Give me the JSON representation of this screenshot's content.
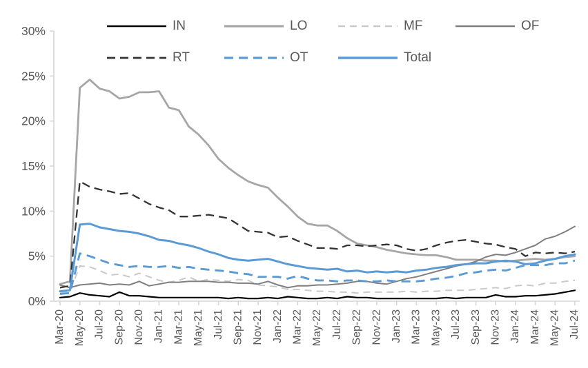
{
  "chart_data": {
    "type": "line",
    "title": "",
    "xlabel": "",
    "ylabel": "",
    "y_axis": {
      "min": 0,
      "max": 30,
      "step": 5,
      "tick_labels": [
        "0%",
        "5%",
        "10%",
        "15%",
        "20%",
        "25%",
        "30%"
      ],
      "label_color": "#595959",
      "axis_color": "#d6d6d6"
    },
    "grid": false,
    "legend_position": "top",
    "legend_rows": [
      [
        "IN",
        "LO",
        "MF",
        "OF"
      ],
      [
        "RT",
        "OT",
        "Total"
      ]
    ],
    "x_tick_every": 2,
    "x_categories": [
      "Mar-20",
      "Apr-20",
      "May-20",
      "Jun-20",
      "Jul-20",
      "Aug-20",
      "Sep-20",
      "Oct-20",
      "Nov-20",
      "Dec-20",
      "Jan-21",
      "Feb-21",
      "Mar-21",
      "Apr-21",
      "May-21",
      "Jun-21",
      "Jul-21",
      "Aug-21",
      "Sep-21",
      "Oct-21",
      "Nov-21",
      "Dec-21",
      "Jan-22",
      "Feb-22",
      "Mar-22",
      "Apr-22",
      "May-22",
      "Jun-22",
      "Jul-22",
      "Aug-22",
      "Sep-22",
      "Oct-22",
      "Nov-22",
      "Dec-22",
      "Jan-23",
      "Feb-23",
      "Mar-23",
      "Apr-23",
      "May-23",
      "Jun-23",
      "Jul-23",
      "Aug-23",
      "Sep-23",
      "Oct-23",
      "Nov-23",
      "Dec-23",
      "Jan-24",
      "Feb-24",
      "Mar-24",
      "Apr-24",
      "May-24",
      "Jun-24",
      "Jul-24"
    ],
    "series": [
      {
        "name": "IN",
        "color": "#000000",
        "style": "solid",
        "width": 2.2,
        "dash": "",
        "values": [
          0.4,
          0.5,
          0.9,
          0.7,
          0.6,
          0.5,
          1.0,
          0.6,
          0.6,
          0.5,
          0.4,
          0.4,
          0.4,
          0.4,
          0.4,
          0.4,
          0.4,
          0.3,
          0.4,
          0.3,
          0.3,
          0.4,
          0.3,
          0.5,
          0.4,
          0.3,
          0.3,
          0.4,
          0.3,
          0.5,
          0.4,
          0.4,
          0.3,
          0.3,
          0.3,
          0.3,
          0.3,
          0.3,
          0.3,
          0.4,
          0.3,
          0.4,
          0.4,
          0.4,
          0.7,
          0.5,
          0.5,
          0.6,
          0.6,
          0.7,
          0.8,
          1.0,
          1.2
        ]
      },
      {
        "name": "LO",
        "color": "#a6a6a6",
        "style": "solid",
        "width": 2.8,
        "dash": "",
        "values": [
          1.9,
          2.2,
          23.7,
          24.6,
          23.6,
          23.3,
          22.5,
          22.7,
          23.2,
          23.2,
          23.3,
          21.5,
          21.2,
          19.4,
          18.5,
          17.3,
          15.8,
          14.8,
          14.0,
          13.3,
          12.9,
          12.6,
          11.5,
          10.5,
          9.4,
          8.6,
          8.4,
          8.4,
          7.8,
          7.0,
          6.4,
          6.2,
          6.0,
          5.7,
          5.5,
          5.3,
          5.2,
          5.1,
          5.1,
          4.9,
          4.6,
          4.6,
          4.6,
          4.5,
          4.5,
          4.4,
          4.5,
          4.6,
          4.7,
          4.6,
          4.7,
          4.9,
          5.0
        ]
      },
      {
        "name": "MF",
        "color": "#c9c9c9",
        "style": "dashed",
        "width": 2.0,
        "dash": "10 7",
        "values": [
          1.0,
          1.1,
          3.9,
          3.8,
          3.4,
          2.9,
          3.0,
          2.7,
          3.1,
          2.7,
          2.3,
          2.1,
          2.3,
          2.7,
          2.2,
          2.4,
          2.3,
          2.2,
          2.4,
          2.3,
          1.8,
          1.7,
          1.6,
          1.3,
          1.3,
          1.2,
          1.1,
          1.1,
          1.0,
          1.0,
          0.9,
          1.0,
          1.0,
          1.0,
          1.0,
          1.1,
          1.0,
          1.1,
          1.1,
          1.2,
          1.2,
          1.2,
          1.3,
          1.4,
          1.5,
          1.4,
          1.7,
          1.8,
          1.7,
          2.0,
          2.0,
          2.2,
          2.3
        ]
      },
      {
        "name": "OF",
        "color": "#7f7f7f",
        "style": "solid",
        "width": 2.0,
        "dash": "",
        "values": [
          1.8,
          1.5,
          1.8,
          1.9,
          2.0,
          1.8,
          1.9,
          1.8,
          2.2,
          1.7,
          1.9,
          2.1,
          2.1,
          2.2,
          2.2,
          2.2,
          2.1,
          2.1,
          2.0,
          2.0,
          1.9,
          2.2,
          1.8,
          1.5,
          1.7,
          1.7,
          1.8,
          1.8,
          1.9,
          2.0,
          2.2,
          2.2,
          2.0,
          1.9,
          2.2,
          2.5,
          2.7,
          3.0,
          3.3,
          3.6,
          3.9,
          4.1,
          4.4,
          4.9,
          5.2,
          5.1,
          5.4,
          5.8,
          6.2,
          6.9,
          7.2,
          7.7,
          8.3
        ]
      },
      {
        "name": "RT",
        "color": "#333333",
        "style": "dashed",
        "width": 2.3,
        "dash": "12 7",
        "values": [
          1.5,
          1.7,
          13.3,
          12.7,
          12.4,
          12.2,
          11.9,
          12.0,
          11.4,
          10.8,
          10.4,
          10.1,
          9.4,
          9.4,
          9.5,
          9.6,
          9.4,
          9.2,
          8.5,
          7.8,
          7.7,
          7.6,
          7.1,
          7.2,
          6.7,
          6.3,
          5.9,
          5.9,
          5.8,
          6.2,
          6.2,
          6.1,
          6.2,
          6.3,
          6.2,
          5.8,
          5.6,
          5.8,
          6.2,
          6.5,
          6.7,
          6.8,
          6.6,
          6.4,
          6.3,
          6.0,
          5.8,
          5.0,
          5.4,
          5.3,
          5.4,
          5.3,
          5.5
        ]
      },
      {
        "name": "OT",
        "color": "#5b9bd5",
        "style": "dashed",
        "width": 2.9,
        "dash": "13 8",
        "values": [
          0.8,
          0.9,
          5.3,
          5.0,
          4.6,
          4.2,
          4.0,
          3.8,
          3.9,
          3.8,
          3.8,
          3.9,
          3.7,
          3.8,
          3.6,
          3.5,
          3.4,
          3.3,
          3.1,
          3.0,
          2.7,
          2.7,
          2.7,
          2.5,
          2.8,
          2.5,
          2.3,
          2.3,
          2.2,
          2.3,
          2.3,
          2.2,
          2.2,
          2.3,
          2.2,
          2.2,
          2.2,
          2.3,
          2.5,
          2.6,
          2.8,
          3.1,
          3.2,
          3.4,
          3.5,
          3.4,
          3.7,
          4.0,
          4.0,
          4.0,
          4.2,
          4.2,
          4.5
        ]
      },
      {
        "name": "Total",
        "color": "#5b9bd5",
        "style": "solid",
        "width": 3.0,
        "dash": "",
        "values": [
          1.1,
          1.2,
          8.5,
          8.6,
          8.2,
          8.0,
          7.8,
          7.7,
          7.5,
          7.2,
          6.8,
          6.7,
          6.4,
          6.2,
          5.9,
          5.5,
          5.2,
          4.8,
          4.6,
          4.5,
          4.6,
          4.7,
          4.4,
          4.1,
          3.9,
          3.7,
          3.6,
          3.5,
          3.6,
          3.3,
          3.4,
          3.2,
          3.3,
          3.2,
          3.3,
          3.2,
          3.4,
          3.5,
          3.7,
          3.8,
          4.0,
          4.1,
          4.2,
          4.2,
          4.4,
          4.5,
          4.4,
          4.1,
          4.2,
          4.5,
          4.7,
          5.0,
          5.2
        ]
      }
    ]
  }
}
